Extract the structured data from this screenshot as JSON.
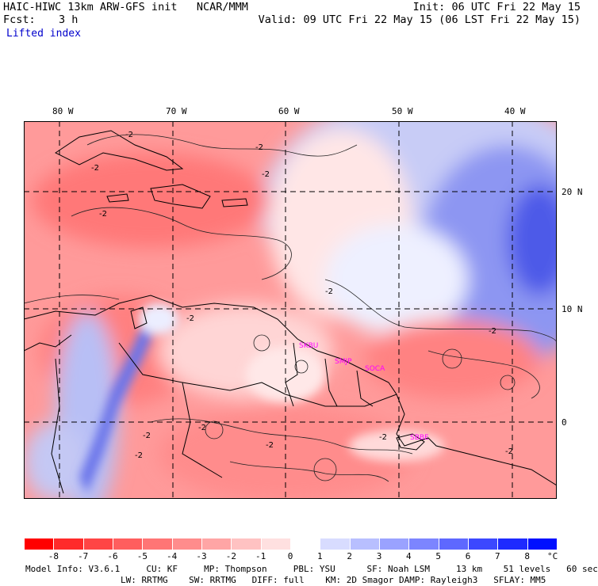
{
  "header": {
    "model_title": "HAIC-HIWC 13km ARW-GFS init   NCAR/MMM",
    "forecast_label": "Fcst:",
    "forecast_value": "3 h",
    "field_name": "Lifted index",
    "init_time": "Init: 06 UTC Fri 22 May 15",
    "valid_time": "Valid: 09 UTC Fri 22 May 15 (06 LST Fri 22 May 15)"
  },
  "map": {
    "lon_labels": [
      "80 W",
      "70 W",
      "60 W",
      "50 W",
      "40 W"
    ],
    "lat_labels": [
      "20 N",
      "10 N",
      "0"
    ],
    "contour_labels": [
      "-2",
      "-2",
      "-2",
      "-2",
      "-2",
      "-2",
      "-2",
      "-2",
      "-2",
      "-2",
      "-2",
      "-2",
      "-2",
      "-2"
    ],
    "stations": [
      "SKBU",
      "SMJP",
      "SOCA",
      "SBBE"
    ]
  },
  "colorbar": {
    "labels": [
      "-8",
      "-7",
      "-6",
      "-5",
      "-4",
      "-3",
      "-2",
      "-1",
      "0",
      "1",
      "2",
      "3",
      "4",
      "5",
      "6",
      "7",
      "8"
    ],
    "unit": "°C",
    "colors": [
      "#ff0000",
      "#ff2a2a",
      "#ff4545",
      "#ff5e5e",
      "#ff7575",
      "#ff8c8c",
      "#ffa5a5",
      "#ffc2c2",
      "#ffe0e0",
      "#ffffff",
      "#d8dcff",
      "#b8bfff",
      "#9aa2ff",
      "#7c85ff",
      "#5e68ff",
      "#3c48ff",
      "#1e2aff",
      "#0010ff"
    ]
  },
  "footer": {
    "line1": "Model Info: V3.6.1     CU: KF     MP: Thompson     PBL: YSU      SF: Noah LSM     13 km    51 levels   60 sec",
    "line2": "LW: RRTMG    SW: RRTMG   DIFF: full    KM: 2D Smagor DAMP: Rayleigh3   SFLAY: MM5"
  }
}
